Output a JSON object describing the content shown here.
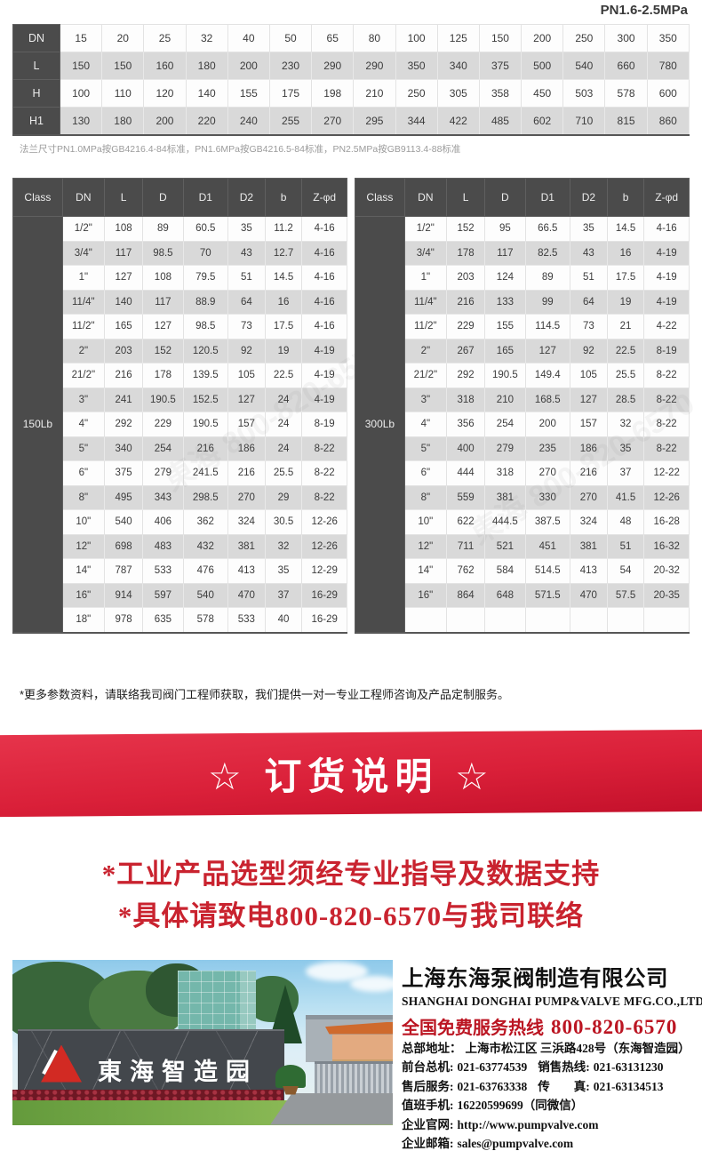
{
  "page": {
    "pressure_label": "PN1.6-2.5MPa"
  },
  "dn_table": {
    "row_headers": [
      "DN",
      "L",
      "H",
      "H1"
    ],
    "rows": [
      [
        "15",
        "20",
        "25",
        "32",
        "40",
        "50",
        "65",
        "80",
        "100",
        "125",
        "150",
        "200",
        "250",
        "300",
        "350"
      ],
      [
        "150",
        "150",
        "160",
        "180",
        "200",
        "230",
        "290",
        "290",
        "350",
        "340",
        "375",
        "500",
        "540",
        "660",
        "780"
      ],
      [
        "100",
        "110",
        "120",
        "140",
        "155",
        "175",
        "198",
        "210",
        "250",
        "305",
        "358",
        "450",
        "503",
        "578",
        "600"
      ],
      [
        "130",
        "180",
        "200",
        "220",
        "240",
        "255",
        "270",
        "295",
        "344",
        "422",
        "485",
        "602",
        "710",
        "815",
        "860"
      ]
    ]
  },
  "flange_note": "法兰尺寸PN1.0MPa按GB4216.4-84标准，PN1.6MPa按GB4216.5-84标准，PN2.5MPa按GB9113.4-88标准",
  "class_tables": [
    {
      "class_label": "150Lb",
      "headers": [
        "Class",
        "DN",
        "L",
        "D",
        "D1",
        "D2",
        "b",
        "Z-φd"
      ],
      "rows": [
        [
          "1/2\"",
          "108",
          "89",
          "60.5",
          "35",
          "11.2",
          "4-16"
        ],
        [
          "3/4\"",
          "117",
          "98.5",
          "70",
          "43",
          "12.7",
          "4-16"
        ],
        [
          "1\"",
          "127",
          "108",
          "79.5",
          "51",
          "14.5",
          "4-16"
        ],
        [
          "11/4\"",
          "140",
          "117",
          "88.9",
          "64",
          "16",
          "4-16"
        ],
        [
          "11/2\"",
          "165",
          "127",
          "98.5",
          "73",
          "17.5",
          "4-16"
        ],
        [
          "2\"",
          "203",
          "152",
          "120.5",
          "92",
          "19",
          "4-19"
        ],
        [
          "21/2\"",
          "216",
          "178",
          "139.5",
          "105",
          "22.5",
          "4-19"
        ],
        [
          "3\"",
          "241",
          "190.5",
          "152.5",
          "127",
          "24",
          "4-19"
        ],
        [
          "4\"",
          "292",
          "229",
          "190.5",
          "157",
          "24",
          "8-19"
        ],
        [
          "5\"",
          "340",
          "254",
          "216",
          "186",
          "24",
          "8-22"
        ],
        [
          "6\"",
          "375",
          "279",
          "241.5",
          "216",
          "25.5",
          "8-22"
        ],
        [
          "8\"",
          "495",
          "343",
          "298.5",
          "270",
          "29",
          "8-22"
        ],
        [
          "10\"",
          "540",
          "406",
          "362",
          "324",
          "30.5",
          "12-26"
        ],
        [
          "12\"",
          "698",
          "483",
          "432",
          "381",
          "32",
          "12-26"
        ],
        [
          "14\"",
          "787",
          "533",
          "476",
          "413",
          "35",
          "12-29"
        ],
        [
          "16\"",
          "914",
          "597",
          "540",
          "470",
          "37",
          "16-29"
        ],
        [
          "18\"",
          "978",
          "635",
          "578",
          "533",
          "40",
          "16-29"
        ]
      ]
    },
    {
      "class_label": "300Lb",
      "headers": [
        "Class",
        "DN",
        "L",
        "D",
        "D1",
        "D2",
        "b",
        "Z-φd"
      ],
      "rows": [
        [
          "1/2\"",
          "152",
          "95",
          "66.5",
          "35",
          "14.5",
          "4-16"
        ],
        [
          "3/4\"",
          "178",
          "117",
          "82.5",
          "43",
          "16",
          "4-19"
        ],
        [
          "1\"",
          "203",
          "124",
          "89",
          "51",
          "17.5",
          "4-19"
        ],
        [
          "11/4\"",
          "216",
          "133",
          "99",
          "64",
          "19",
          "4-19"
        ],
        [
          "11/2\"",
          "229",
          "155",
          "114.5",
          "73",
          "21",
          "4-22"
        ],
        [
          "2\"",
          "267",
          "165",
          "127",
          "92",
          "22.5",
          "8-19"
        ],
        [
          "21/2\"",
          "292",
          "190.5",
          "149.4",
          "105",
          "25.5",
          "8-22"
        ],
        [
          "3\"",
          "318",
          "210",
          "168.5",
          "127",
          "28.5",
          "8-22"
        ],
        [
          "4\"",
          "356",
          "254",
          "200",
          "157",
          "32",
          "8-22"
        ],
        [
          "5\"",
          "400",
          "279",
          "235",
          "186",
          "35",
          "8-22"
        ],
        [
          "6\"",
          "444",
          "318",
          "270",
          "216",
          "37",
          "12-22"
        ],
        [
          "8\"",
          "559",
          "381",
          "330",
          "270",
          "41.5",
          "12-26"
        ],
        [
          "10\"",
          "622",
          "444.5",
          "387.5",
          "324",
          "48",
          "16-28"
        ],
        [
          "12\"",
          "711",
          "521",
          "451",
          "381",
          "51",
          "16-32"
        ],
        [
          "14\"",
          "762",
          "584",
          "514.5",
          "413",
          "54",
          "20-32"
        ],
        [
          "16\"",
          "864",
          "648",
          "571.5",
          "470",
          "57.5",
          "20-35"
        ],
        [
          "",
          "",
          "",
          "",
          "",
          "",
          ""
        ]
      ]
    }
  ],
  "watermark_text": "東海 800-820-6570",
  "params_note": "*更多参数资料，请联络我司阀门工程师获取，我们提供一对一专业工程师咨询及产品定制服务。",
  "order_banner": {
    "title": "☆ 订货说明 ☆"
  },
  "order_notes": [
    "*工业产品选型须经专业指导及数据支持",
    "*具体请致电800-820-6570与我司联络"
  ],
  "photo": {
    "sign_text": "東海智造园"
  },
  "company": {
    "name_cn": "上海东海泵阀制造有限公司",
    "name_en": "SHANGHAI DONGHAI PUMP&VALVE MFG.CO.,LTD.",
    "hotline_label": "全国免费服务热线",
    "hotline_number": "800-820-6570",
    "contacts": [
      {
        "label": "总部地址：",
        "value": "上海市松江区 三浜路428号（东海智造园）"
      },
      {
        "label": "前台总机:",
        "value": "021-63774539",
        "label2": "销售热线:",
        "value2": "021-63131230"
      },
      {
        "label": "售后服务:",
        "value": "021-63763338",
        "label2": "传　　真:",
        "value2": "021-63134513"
      },
      {
        "label": "值班手机:",
        "value": "16220599699（同微信）"
      },
      {
        "label": "企业官网:",
        "value": "http://www.pumpvalve.com",
        "link": true
      },
      {
        "label": "企业邮箱:",
        "value": "sales@pumpvalve.com",
        "link": true
      }
    ]
  },
  "colors": {
    "header_dark": "#4b4b4b",
    "row_alt_gray": "#d9d9d9",
    "banner_red": "#da2039",
    "note_red": "#c9232f",
    "hotline_red": "#bb1522"
  }
}
